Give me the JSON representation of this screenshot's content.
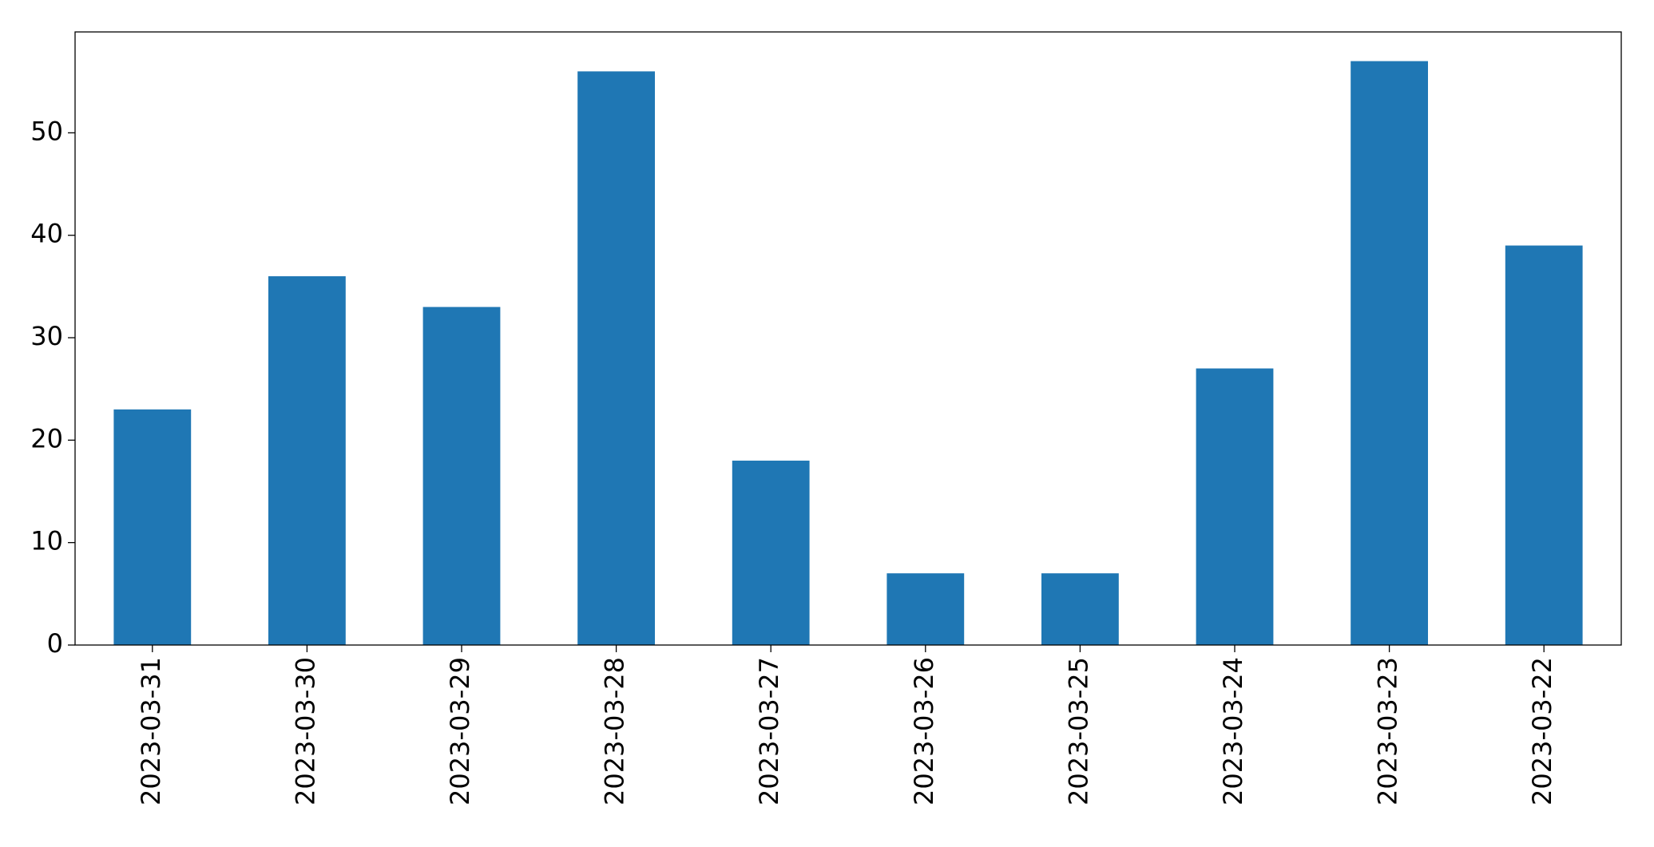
{
  "chart_data": {
    "type": "bar",
    "categories": [
      "2023-03-31",
      "2023-03-30",
      "2023-03-29",
      "2023-03-28",
      "2023-03-27",
      "2023-03-26",
      "2023-03-25",
      "2023-03-24",
      "2023-03-23",
      "2023-03-22"
    ],
    "values": [
      23,
      36,
      33,
      56,
      18,
      7,
      7,
      27,
      57,
      39
    ],
    "color": "#1f77b4",
    "ylim": [
      0,
      59.85
    ],
    "yticks": [
      0,
      10,
      20,
      30,
      40,
      50
    ],
    "grid": false
  }
}
